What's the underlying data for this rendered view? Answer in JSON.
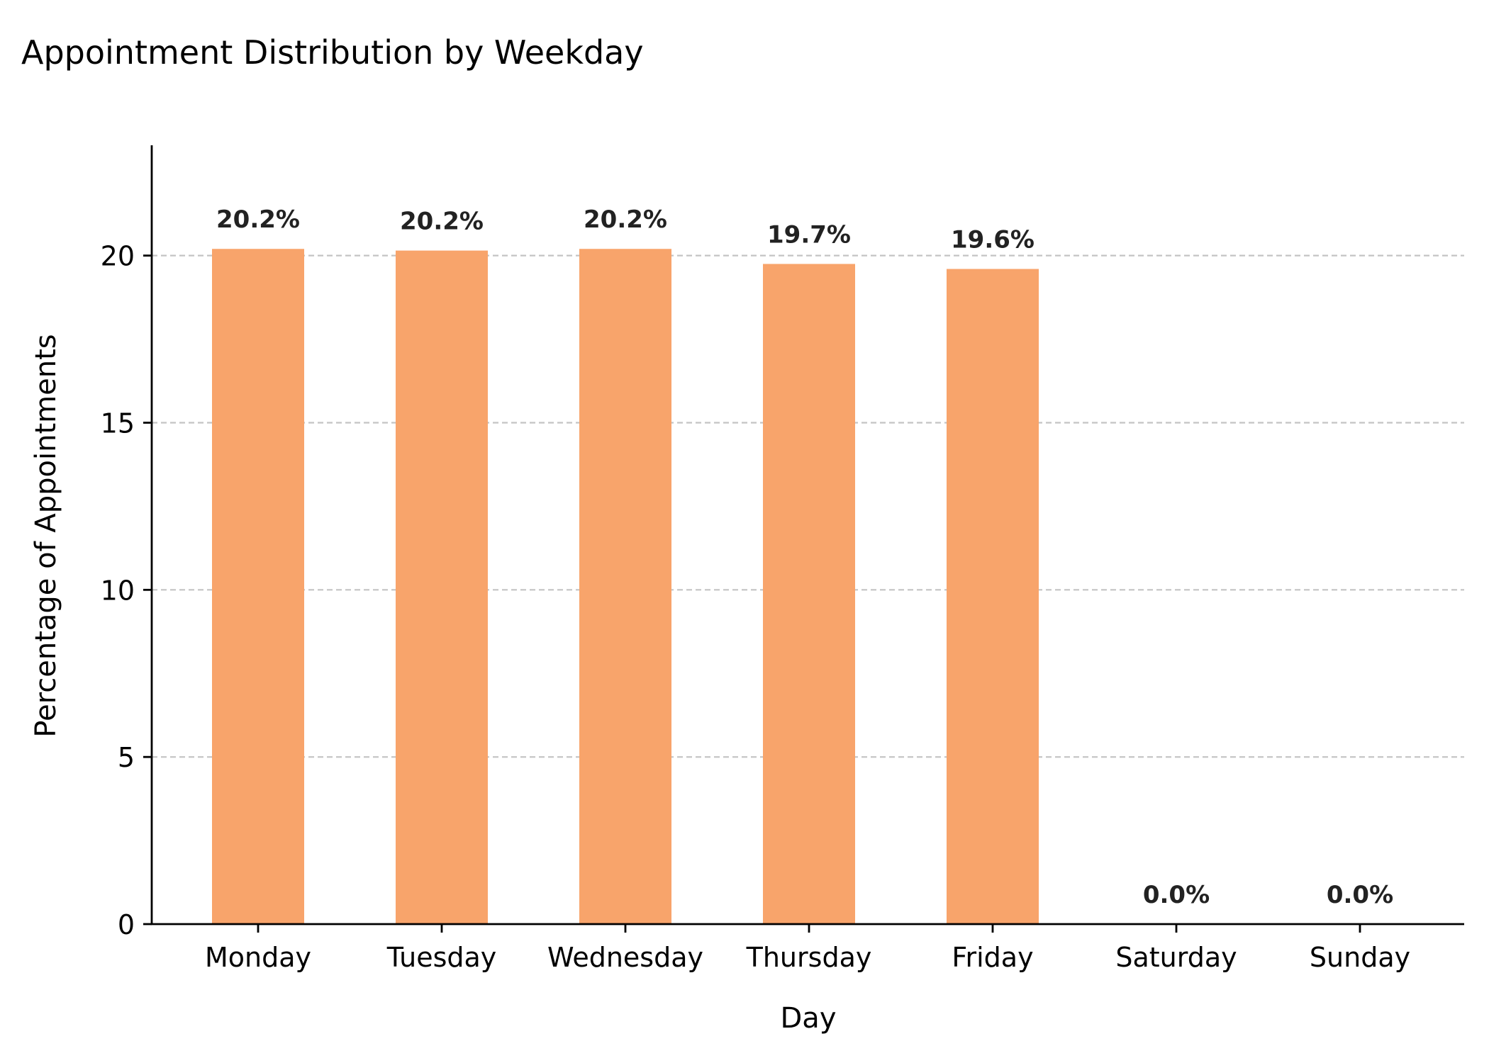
{
  "chart_data": {
    "type": "bar",
    "title": "Appointment Distribution by Weekday",
    "xlabel": "Day",
    "ylabel": "Percentage of Appointments",
    "categories": [
      "Monday",
      "Tuesday",
      "Wednesday",
      "Thursday",
      "Friday",
      "Saturday",
      "Sunday"
    ],
    "values": [
      20.2,
      20.15,
      20.2,
      19.75,
      19.6,
      0.0,
      0.0
    ],
    "data_labels": [
      "20.2%",
      "20.2%",
      "20.2%",
      "19.7%",
      "19.6%",
      "0.0%",
      "0.0%"
    ],
    "yticks": [
      0,
      5,
      10,
      15,
      20
    ],
    "ytick_labels": [
      "0",
      "5",
      "10",
      "15",
      "20"
    ],
    "ylim": [
      0,
      23.3
    ],
    "grid": true,
    "grid_axis": "y",
    "legend": false,
    "bar_color": "#f8a46b",
    "grid_color": "#c4c4c4"
  }
}
